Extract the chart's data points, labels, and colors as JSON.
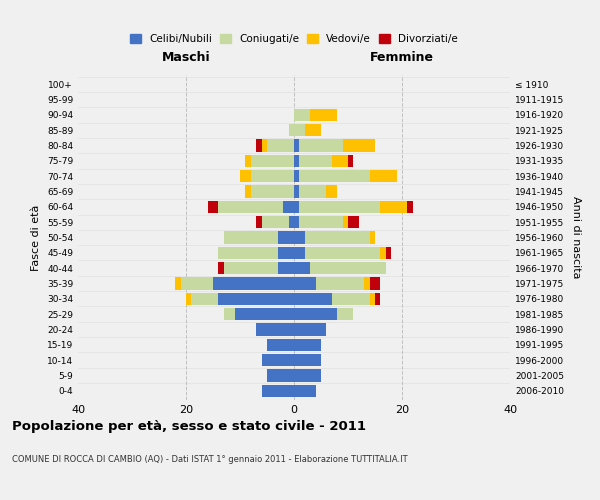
{
  "age_groups": [
    "0-4",
    "5-9",
    "10-14",
    "15-19",
    "20-24",
    "25-29",
    "30-34",
    "35-39",
    "40-44",
    "45-49",
    "50-54",
    "55-59",
    "60-64",
    "65-69",
    "70-74",
    "75-79",
    "80-84",
    "85-89",
    "90-94",
    "95-99",
    "100+"
  ],
  "birth_years": [
    "2006-2010",
    "2001-2005",
    "1996-2000",
    "1991-1995",
    "1986-1990",
    "1981-1985",
    "1976-1980",
    "1971-1975",
    "1966-1970",
    "1961-1965",
    "1956-1960",
    "1951-1955",
    "1946-1950",
    "1941-1945",
    "1936-1940",
    "1931-1935",
    "1926-1930",
    "1921-1925",
    "1916-1920",
    "1911-1915",
    "≤ 1910"
  ],
  "male": {
    "celibi": [
      6,
      5,
      6,
      5,
      7,
      11,
      14,
      15,
      3,
      3,
      3,
      1,
      2,
      0,
      0,
      0,
      0,
      0,
      0,
      0,
      0
    ],
    "coniugati": [
      0,
      0,
      0,
      0,
      0,
      2,
      5,
      6,
      10,
      11,
      10,
      5,
      12,
      8,
      8,
      8,
      5,
      1,
      0,
      0,
      0
    ],
    "vedovi": [
      0,
      0,
      0,
      0,
      0,
      0,
      1,
      1,
      0,
      0,
      0,
      0,
      0,
      1,
      2,
      1,
      1,
      0,
      0,
      0,
      0
    ],
    "divorziati": [
      0,
      0,
      0,
      0,
      0,
      0,
      0,
      0,
      1,
      0,
      0,
      1,
      2,
      0,
      0,
      0,
      1,
      0,
      0,
      0,
      0
    ]
  },
  "female": {
    "nubili": [
      4,
      5,
      5,
      5,
      6,
      8,
      7,
      4,
      3,
      2,
      2,
      1,
      1,
      1,
      1,
      1,
      1,
      0,
      0,
      0,
      0
    ],
    "coniugate": [
      0,
      0,
      0,
      0,
      0,
      3,
      7,
      9,
      14,
      14,
      12,
      8,
      15,
      5,
      13,
      6,
      8,
      2,
      3,
      0,
      0
    ],
    "vedove": [
      0,
      0,
      0,
      0,
      0,
      0,
      1,
      1,
      0,
      1,
      1,
      1,
      5,
      2,
      5,
      3,
      6,
      3,
      5,
      0,
      0
    ],
    "divorziate": [
      0,
      0,
      0,
      0,
      0,
      0,
      1,
      2,
      0,
      1,
      0,
      2,
      1,
      0,
      0,
      1,
      0,
      0,
      0,
      0,
      0
    ]
  },
  "colors": {
    "celibi": "#4472c4",
    "coniugati": "#c5d9a0",
    "vedovi": "#ffc000",
    "divorziati": "#c0000b"
  },
  "xlim": 40,
  "title": "Popolazione per età, sesso e stato civile - 2011",
  "subtitle": "COMUNE DI ROCCA DI CAMBIO (AQ) - Dati ISTAT 1° gennaio 2011 - Elaborazione TUTTITALIA.IT",
  "ylabel_left": "Fasce di età",
  "ylabel_right": "Anni di nascita",
  "xlabel_maschi": "Maschi",
  "xlabel_femmine": "Femmine",
  "background_color": "#f0f0f0",
  "grid_color": "#cccccc",
  "legend_labels": [
    "Celibi/Nubili",
    "Coniugati/e",
    "Vedovi/e",
    "Divorziati/e"
  ]
}
